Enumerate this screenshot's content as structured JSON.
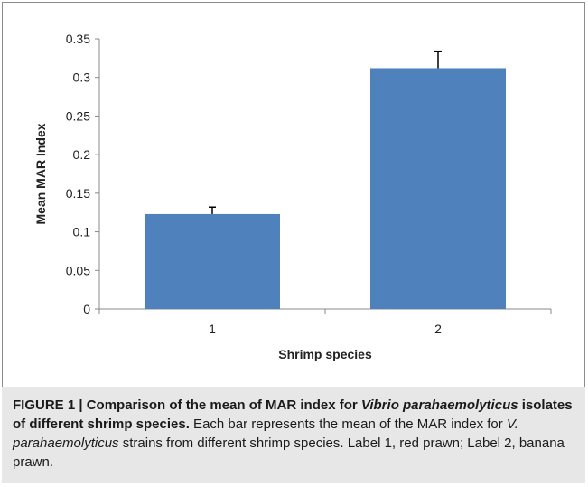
{
  "chart_data": {
    "type": "bar",
    "categories": [
      "1",
      "2"
    ],
    "values": [
      0.123,
      0.312
    ],
    "error_plus": [
      0.009,
      0.022
    ],
    "xlabel": "Shrimp species",
    "ylabel": "Mean MAR Index",
    "ylim": [
      0,
      0.35
    ],
    "yticks": [
      "0",
      "0.05",
      "0.1",
      "0.15",
      "0.2",
      "0.25",
      "0.3",
      "0.35"
    ],
    "grid": false,
    "legend": "none",
    "bar_color": "#4f81bd"
  },
  "caption": {
    "label": "FIGURE 1 | Comparison of the mean of MAR index for ",
    "label_italic": "Vibrio parahaemolyticus",
    "label_rest": " isolates of different shrimp species.",
    "body_1": " Each bar represents the mean of the MAR index for ",
    "body_italic": "V. parahaemolyticus",
    "body_2": " strains from different shrimp species. Label 1, red prawn; Label 2, banana prawn."
  }
}
